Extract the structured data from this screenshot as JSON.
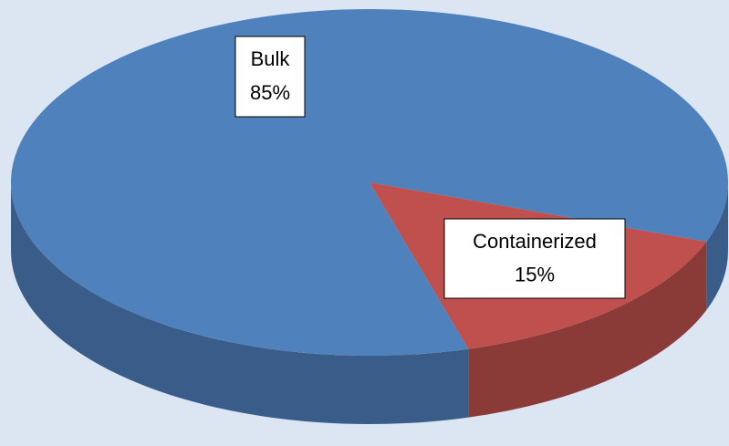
{
  "chart_data": {
    "type": "pie",
    "categories": [
      "Bulk",
      "Containerized"
    ],
    "values": [
      85,
      15
    ],
    "value_labels": [
      "85%",
      "15%"
    ],
    "colors": [
      "#4f81bd",
      "#c0504d"
    ]
  }
}
